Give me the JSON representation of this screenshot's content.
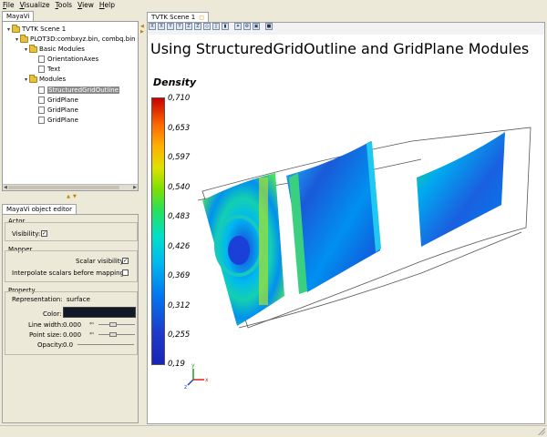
{
  "menu": {
    "file": "File",
    "visualize": "Visualize",
    "tools": "Tools",
    "view": "View",
    "help": "Help"
  },
  "panels": {
    "mayavi_tab": "MayaVi",
    "editor_tab": "MayaVi object editor",
    "scene_tab": "TVTK Scene 1"
  },
  "tree": {
    "scene": "TVTK Scene 1",
    "source": "PLOT3D:combxyz.bin, combq.bin",
    "basic_modules": "Basic Modules",
    "orientation_axes": "OrientationAxes",
    "text": "Text",
    "modules": "Modules",
    "outline": "StructuredGridOutline",
    "gridplane1": "GridPlane",
    "gridplane2": "GridPlane",
    "gridplane3": "GridPlane"
  },
  "editor": {
    "actor_group": "Actor",
    "visibility_label": "Visibility:",
    "visibility_checked": true,
    "mapper_group": "Mapper",
    "scalar_visibility_label": "Scalar visibility:",
    "scalar_visibility_checked": true,
    "interpolate_label": "Interpolate scalars before mapping:",
    "interpolate_checked": false,
    "property_group": "Property",
    "representation_label": "Representation:",
    "representation_value": "surface",
    "color_label": "Color:",
    "color_value": "#121826",
    "line_width_label": "Line width:",
    "line_width_value": "0.000",
    "point_size_label": "Point size:",
    "point_size_value": "0.000",
    "opacity_label": "Opacity:",
    "opacity_value": "0.0"
  },
  "scene": {
    "title": "Using StructuredGridOutline and GridPlane Modules",
    "colorbar_title": "Density",
    "ticks": [
      "0,710",
      "0,653",
      "0,597",
      "0,540",
      "0,483",
      "0,426",
      "0,369",
      "0,312",
      "0,255",
      "0,19"
    ],
    "axes_x": "x",
    "axes_y": "y",
    "axes_z": "z"
  },
  "colors": {
    "selection": "#8a8a8a",
    "panel_bg": "#ece9d8",
    "scene_bg": "#ffffff"
  }
}
